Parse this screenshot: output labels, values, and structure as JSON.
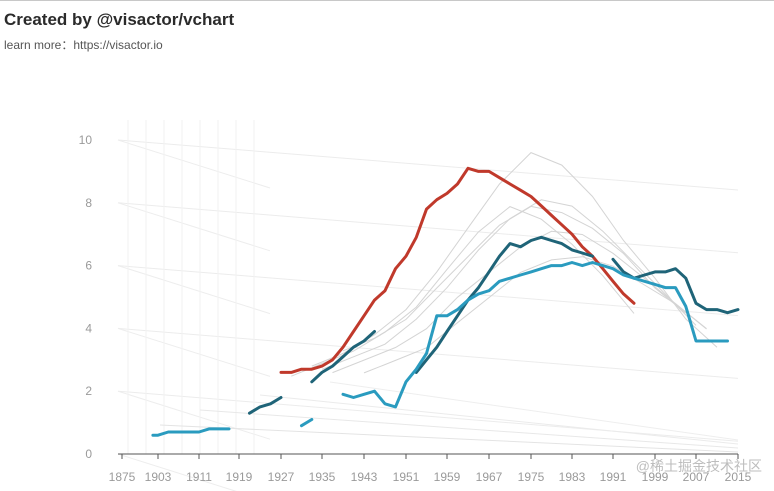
{
  "header": {
    "title": "Created by @visactor/vchart",
    "subtitle_label": "learn more：",
    "subtitle_link": "https://visactor.io"
  },
  "watermark": "@稀土掘金技术社区",
  "colors": {
    "red": "#c0392b",
    "dark_teal": "#1f6478",
    "light_teal": "#2a9bbf",
    "background_series": "#d4d4d4",
    "grid": "#e8e8e8"
  },
  "chart_data": {
    "type": "line",
    "style": "3d-stacked-ridgeline",
    "title": "",
    "xlabel": "",
    "ylabel": "",
    "x_ticks": [
      "1875",
      "1903",
      "1911",
      "1919",
      "1927",
      "1935",
      "1943",
      "1951",
      "1959",
      "1967",
      "1975",
      "1983",
      "1991",
      "1999",
      "2007",
      "2015"
    ],
    "y_ticks": [
      "0",
      "2",
      "4",
      "6",
      "8",
      "10"
    ],
    "ylim": [
      0,
      10
    ],
    "highlight_series": [
      {
        "name": "series-red",
        "color": "#c0392b",
        "x": [
          1927,
          1929,
          1931,
          1933,
          1935,
          1937,
          1939,
          1941,
          1943,
          1945,
          1947,
          1949,
          1951,
          1953,
          1955,
          1957,
          1959,
          1961,
          1963,
          1965,
          1967,
          1969,
          1971,
          1973,
          1975,
          1977,
          1979,
          1981,
          1983,
          1985,
          1987,
          1989,
          1991,
          1993,
          1995
        ],
        "values": [
          2.6,
          2.6,
          2.7,
          2.7,
          2.8,
          3.0,
          3.4,
          3.9,
          4.4,
          4.9,
          5.2,
          5.9,
          6.3,
          6.9,
          7.8,
          8.1,
          8.3,
          8.6,
          9.1,
          9.0,
          9.0,
          8.8,
          8.6,
          8.4,
          8.2,
          7.9,
          7.6,
          7.3,
          7.0,
          6.6,
          6.3,
          5.9,
          5.5,
          5.1,
          4.8
        ]
      },
      {
        "name": "series-dark-teal",
        "color": "#1f6478",
        "segments": [
          {
            "x": [
              1921,
              1923,
              1925,
              1927
            ],
            "values": [
              1.3,
              1.5,
              1.6,
              1.8
            ]
          },
          {
            "x": [
              1933,
              1935,
              1937,
              1939,
              1941,
              1943,
              1945
            ],
            "values": [
              2.3,
              2.6,
              2.8,
              3.1,
              3.4,
              3.6,
              3.9
            ]
          },
          {
            "x": [
              1953,
              1955,
              1957,
              1959,
              1961,
              1963,
              1965,
              1967,
              1969,
              1971,
              1973,
              1975,
              1977,
              1979,
              1981,
              1983,
              1985,
              1987
            ],
            "values": [
              2.6,
              3.0,
              3.4,
              3.9,
              4.4,
              4.9,
              5.3,
              5.8,
              6.3,
              6.7,
              6.6,
              6.8,
              6.9,
              6.8,
              6.7,
              6.5,
              6.4,
              6.3
            ]
          },
          {
            "x": [
              1991,
              1993,
              1995,
              1997,
              1999,
              2001,
              2003,
              2005,
              2007,
              2009,
              2011,
              2013,
              2015
            ],
            "values": [
              6.2,
              5.8,
              5.6,
              5.7,
              5.8,
              5.8,
              5.9,
              5.6,
              4.8,
              4.6,
              4.6,
              4.5,
              4.6
            ]
          }
        ]
      },
      {
        "name": "series-light-teal",
        "color": "#2a9bbf",
        "segments": [
          {
            "x": [
              1899,
              1901,
              1903,
              1905,
              1907,
              1909,
              1911,
              1913,
              1915,
              1917
            ],
            "values": [
              0.6,
              0.6,
              0.6,
              0.7,
              0.7,
              0.7,
              0.7,
              0.8,
              0.8,
              0.8
            ]
          },
          {
            "x": [
              1931,
              1933
            ],
            "values": [
              0.9,
              1.1
            ]
          },
          {
            "x": [
              1939,
              1941,
              1943,
              1945,
              1947,
              1949,
              1951,
              1953,
              1955,
              1957,
              1959,
              1961,
              1963,
              1965,
              1967,
              1969,
              1971,
              1973,
              1975,
              1977,
              1979,
              1981,
              1983,
              1985,
              1987,
              1989,
              1991,
              1993,
              1995,
              1997,
              1999,
              2001,
              2003,
              2005,
              2007,
              2009,
              2011,
              2013
            ],
            "values": [
              1.9,
              1.8,
              1.9,
              2.0,
              1.6,
              1.5,
              2.3,
              2.7,
              3.2,
              4.4,
              4.4,
              4.6,
              4.9,
              5.1,
              5.2,
              5.5,
              5.6,
              5.7,
              5.8,
              5.9,
              6.0,
              6.0,
              6.1,
              6.0,
              6.1,
              6.0,
              5.9,
              5.7,
              5.6,
              5.5,
              5.4,
              5.3,
              5.3,
              4.7,
              3.6,
              3.6,
              3.6,
              3.6
            ]
          }
        ]
      }
    ],
    "background_series": [
      {
        "name": "bg-1",
        "x": [
          1933,
          1939,
          1945,
          1951,
          1957,
          1963,
          1969,
          1975,
          1981,
          1987,
          1993,
          1999,
          2005,
          2011
        ],
        "values": [
          2.8,
          3.2,
          3.8,
          4.6,
          5.8,
          7.2,
          8.6,
          9.6,
          9.2,
          8.2,
          6.8,
          5.6,
          4.3,
          3.4
        ]
      },
      {
        "name": "bg-2",
        "x": [
          1935,
          1941,
          1947,
          1953,
          1959,
          1965,
          1971,
          1977,
          1983,
          1989,
          1995,
          2001,
          2007
        ],
        "values": [
          2.6,
          3.0,
          3.4,
          4.2,
          5.2,
          6.4,
          7.4,
          8.0,
          7.8,
          7.0,
          6.0,
          5.0,
          4.0
        ]
      },
      {
        "name": "bg-3",
        "x": [
          1937,
          1943,
          1949,
          1955,
          1961,
          1967,
          1973,
          1979,
          1985,
          1991,
          1997,
          2003,
          2009
        ],
        "values": [
          2.4,
          2.8,
          3.2,
          3.8,
          4.8,
          5.6,
          6.4,
          6.9,
          6.8,
          6.2,
          5.4,
          4.6,
          3.8
        ]
      },
      {
        "name": "bg-4",
        "x": [
          1939,
          1945,
          1951,
          1957,
          1963,
          1969,
          1975,
          1981,
          1987,
          1993,
          1999,
          2005
        ],
        "values": [
          3.0,
          3.4,
          4.0,
          5.0,
          6.0,
          7.0,
          7.6,
          7.4,
          6.9,
          6.1,
          5.0,
          4.2
        ]
      },
      {
        "name": "bg-5",
        "x": [
          1943,
          1949,
          1955,
          1961,
          1967,
          1973,
          1979,
          1985,
          1991,
          1997,
          2003,
          2009
        ],
        "values": [
          2.2,
          2.6,
          3.0,
          3.8,
          4.6,
          5.4,
          5.8,
          5.9,
          5.6,
          5.0,
          4.4,
          3.6
        ]
      },
      {
        "name": "bg-6",
        "x": [
          1929,
          1935,
          1941,
          1947,
          1953,
          1959,
          1965,
          1971,
          1977,
          1983,
          1989,
          1995
        ],
        "values": [
          2.0,
          2.4,
          2.8,
          3.4,
          4.2,
          5.4,
          6.6,
          7.4,
          7.0,
          6.2,
          5.2,
          4.0
        ]
      }
    ]
  }
}
